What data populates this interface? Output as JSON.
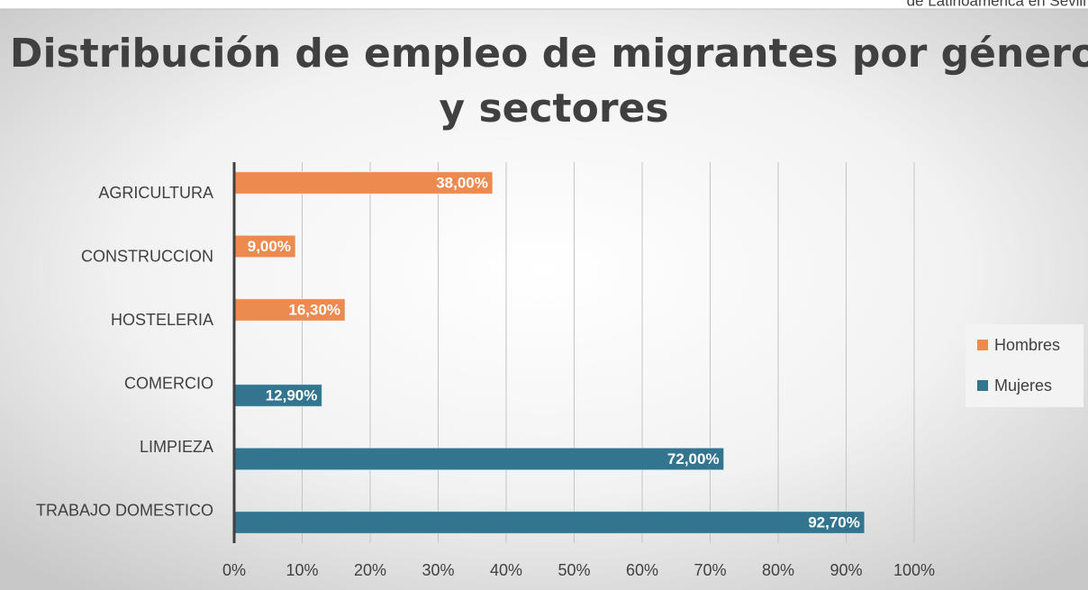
{
  "header_note": "de Latinoamérica en Sevill",
  "chart_data": {
    "type": "hbar",
    "title_lines": [
      "Distribución de empleo de migrantes por género",
      "y sectores"
    ],
    "categories": [
      "AGRICULTURA",
      "CONSTRUCCION",
      "HOSTELERIA",
      "COMERCIO",
      "LIMPIEZA",
      "TRABAJO DOMESTICO"
    ],
    "series": [
      {
        "name": "Hombres",
        "color": "#ed8a50",
        "values": [
          38,
          9,
          16.3,
          null,
          null,
          null
        ],
        "value_labels": [
          "38,00%",
          "9,00%",
          "16,30%",
          null,
          null,
          null
        ]
      },
      {
        "name": "Mujeres",
        "color": "#33758f",
        "values": [
          null,
          null,
          null,
          12.9,
          72,
          92.7
        ],
        "value_labels": [
          null,
          null,
          null,
          "12,90%",
          "72,00%",
          "92,70%"
        ]
      }
    ],
    "xlim": [
      0,
      100
    ],
    "xticks": [
      {
        "value": 0,
        "label": "0%"
      },
      {
        "value": 10,
        "label": "10%"
      },
      {
        "value": 20,
        "label": "20%"
      },
      {
        "value": 30,
        "label": "30%"
      },
      {
        "value": 40,
        "label": "40%"
      },
      {
        "value": 50,
        "label": "50%"
      },
      {
        "value": 60,
        "label": "60%"
      },
      {
        "value": 70,
        "label": "70%"
      },
      {
        "value": 80,
        "label": "80%"
      },
      {
        "value": 90,
        "label": "90%"
      },
      {
        "value": 100,
        "label": "100%"
      }
    ],
    "grid": true,
    "legend": "right"
  }
}
